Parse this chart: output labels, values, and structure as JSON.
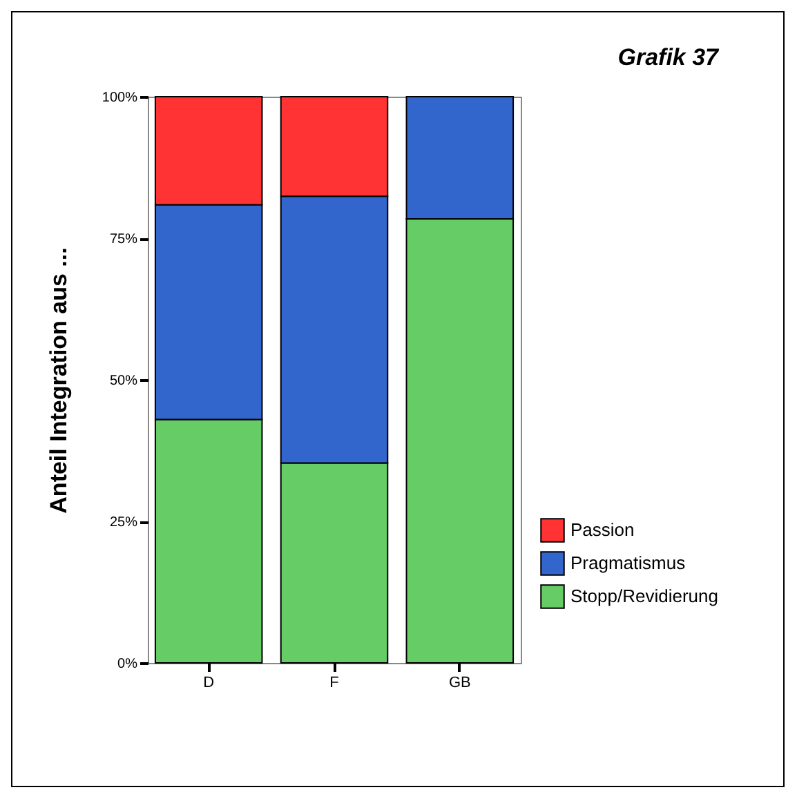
{
  "chart_data": {
    "type": "bar",
    "title": "Grafik 37",
    "ylabel": "Anteil Integration aus ...",
    "categories": [
      "D",
      "F",
      "GB"
    ],
    "stacked": true,
    "legend": "right",
    "ylim": [
      0,
      100
    ],
    "yticks": [
      {
        "value": 0,
        "label": "0%"
      },
      {
        "value": 25,
        "label": "25%"
      },
      {
        "value": 50,
        "label": "50%"
      },
      {
        "value": 75,
        "label": "75%"
      },
      {
        "value": 100,
        "label": "100%"
      }
    ],
    "series": [
      {
        "name": "Stopp/Revidierung",
        "color": "#66cc66",
        "values": [
          43.0,
          35.3,
          78.4
        ]
      },
      {
        "name": "Pragmatismus",
        "color": "#3366cc",
        "values": [
          37.9,
          47.1,
          21.6
        ]
      },
      {
        "name": "Passion",
        "color": "#ff3333",
        "values": [
          19.1,
          17.6,
          null
        ]
      }
    ]
  }
}
